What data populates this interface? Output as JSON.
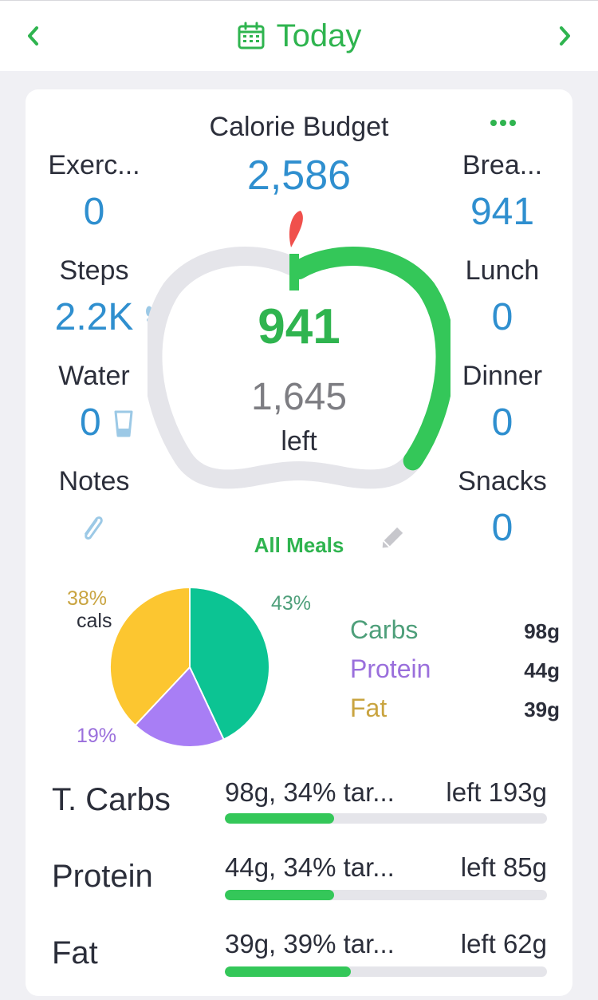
{
  "header": {
    "title": "Today",
    "icons": {
      "prev": "chevron-left-icon",
      "next": "chevron-right-icon",
      "calendar": "calendar-icon"
    },
    "accent": "#2fb44f"
  },
  "budget": {
    "label": "Calorie Budget",
    "value": "2,586",
    "eaten": "941",
    "remaining": "1,645",
    "remaining_suffix": "left",
    "progress_fraction": 0.364,
    "all_meals_label": "All Meals"
  },
  "left_stats": {
    "exercise": {
      "label": "Exerc...",
      "value": "0"
    },
    "steps": {
      "label": "Steps",
      "value": "2.2K"
    },
    "water": {
      "label": "Water",
      "value": "0"
    },
    "notes": {
      "label": "Notes"
    }
  },
  "meals": {
    "breakfast": {
      "label": "Brea...",
      "value": "941"
    },
    "lunch": {
      "label": "Lunch",
      "value": "0"
    },
    "dinner": {
      "label": "Dinner",
      "value": "0"
    },
    "snacks": {
      "label": "Snacks",
      "value": "0"
    }
  },
  "chart_data": {
    "type": "pie",
    "slices": [
      {
        "name": "Carbs",
        "value": 43,
        "label": "43%",
        "color": "#0cc493"
      },
      {
        "name": "Protein",
        "value": 19,
        "label": "19%",
        "color": "#a87ef5"
      },
      {
        "name": "Fat",
        "value": 38,
        "label": "38%",
        "color": "#fcc630"
      }
    ],
    "annotation": "cals"
  },
  "macros": [
    {
      "name": "Carbs",
      "grams": "98g",
      "color": "#4e9f7a"
    },
    {
      "name": "Protein",
      "grams": "44g",
      "color": "#9a6fdc"
    },
    {
      "name": "Fat",
      "grams": "39g",
      "color": "#c9a440"
    }
  ],
  "targets": [
    {
      "label": "T. Carbs",
      "summary": "98g, 34% tar...",
      "left": "left 193g",
      "progress": 0.34
    },
    {
      "label": "Protein",
      "summary": "44g, 34% tar...",
      "left": "left 85g",
      "progress": 0.34
    },
    {
      "label": "Fat",
      "summary": "39g, 39% tar...",
      "left": "left 62g",
      "progress": 0.39
    }
  ]
}
